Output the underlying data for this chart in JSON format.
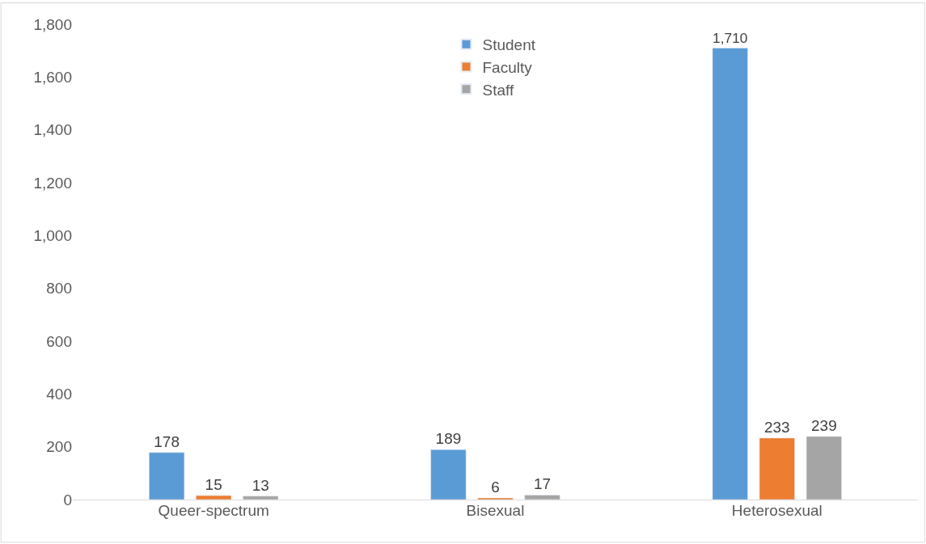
{
  "chart_data": {
    "type": "bar",
    "categories": [
      "Queer-spectrum",
      "Bisexual",
      "Heterosexual"
    ],
    "series": [
      {
        "name": "Student",
        "color": "#5b9bd5",
        "values": [
          178,
          189,
          1710
        ],
        "value_labels": [
          "178",
          "189",
          "1,710"
        ]
      },
      {
        "name": "Faculty",
        "color": "#ed7d31",
        "values": [
          15,
          6,
          233
        ],
        "value_labels": [
          "15",
          "6",
          "233"
        ]
      },
      {
        "name": "Staff",
        "color": "#a5a5a5",
        "values": [
          13,
          17,
          239
        ],
        "value_labels": [
          "13",
          "17",
          "239"
        ]
      }
    ],
    "ylim": [
      0,
      1800
    ],
    "yticks": [
      0,
      200,
      400,
      600,
      800,
      {
        "value": 1000,
        "label": "1,000"
      },
      {
        "value": 1200,
        "label": "1,200"
      },
      {
        "value": 1400,
        "label": "1,400"
      },
      {
        "value": 1600,
        "label": "1,600"
      },
      {
        "value": 1800,
        "label": "1,800"
      }
    ],
    "legend": "top center"
  }
}
